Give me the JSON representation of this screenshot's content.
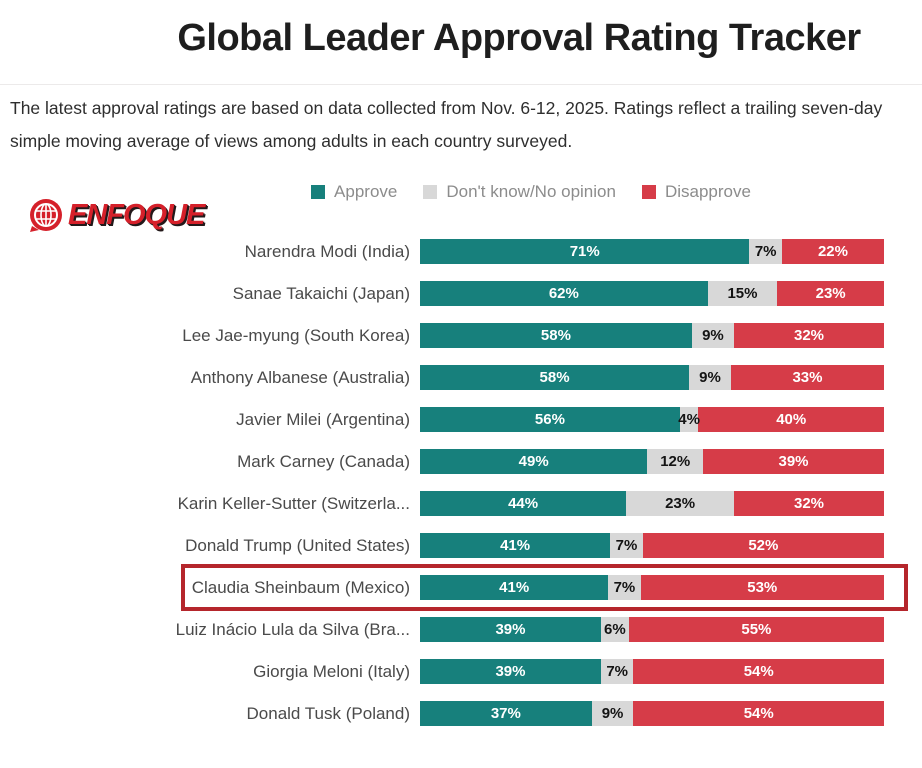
{
  "page": {
    "title": "Global Leader Approval Rating Tracker",
    "subtitle": "The latest approval ratings are based on data collected from Nov. 6-12, 2025. Ratings reflect a trailing seven-day simple moving average of views among adults in each country surveyed."
  },
  "logo": {
    "text": "ENFOQUE",
    "icon": "globe-icon",
    "color": "#d5202a"
  },
  "legend": [
    {
      "label": "Approve",
      "color": "#17807c"
    },
    {
      "label": "Don't know/No opinion",
      "color": "#d8d8d8"
    },
    {
      "label": "Disapprove",
      "color": "#d63c48"
    }
  ],
  "chart_data": {
    "type": "bar",
    "orientation": "horizontal",
    "stacked": true,
    "value_suffix": "%",
    "categories": [
      "Narendra Modi (India)",
      "Sanae Takaichi (Japan)",
      "Lee Jae-myung (South Korea)",
      "Anthony Albanese (Australia)",
      "Javier Milei (Argentina)",
      "Mark Carney (Canada)",
      "Karin Keller-Sutter (Switzerla...",
      "Donald Trump (United States)",
      "Claudia Sheinbaum (Mexico)",
      "Luiz Inácio Lula da Silva (Bra...",
      "Giorgia Meloni (Italy)",
      "Donald Tusk (Poland)"
    ],
    "series": [
      {
        "name": "Approve",
        "color": "#17807c",
        "text_color": "#ffffff",
        "values": [
          71,
          62,
          58,
          58,
          56,
          49,
          44,
          41,
          41,
          39,
          39,
          37
        ]
      },
      {
        "name": "Don't know/No opinion",
        "color": "#d8d8d8",
        "text_color": "#141414",
        "values": [
          7,
          15,
          9,
          9,
          4,
          12,
          23,
          7,
          7,
          6,
          7,
          9
        ]
      },
      {
        "name": "Disapprove",
        "color": "#d63c48",
        "text_color": "#ffffff",
        "values": [
          22,
          23,
          32,
          33,
          40,
          39,
          32,
          52,
          53,
          55,
          54,
          54
        ]
      }
    ],
    "highlighted_category": "Claudia Sheinbaum (Mexico)",
    "highlight_color": "#b5262c",
    "xlim": [
      0,
      100
    ],
    "grid": false,
    "legend_position": "top"
  }
}
